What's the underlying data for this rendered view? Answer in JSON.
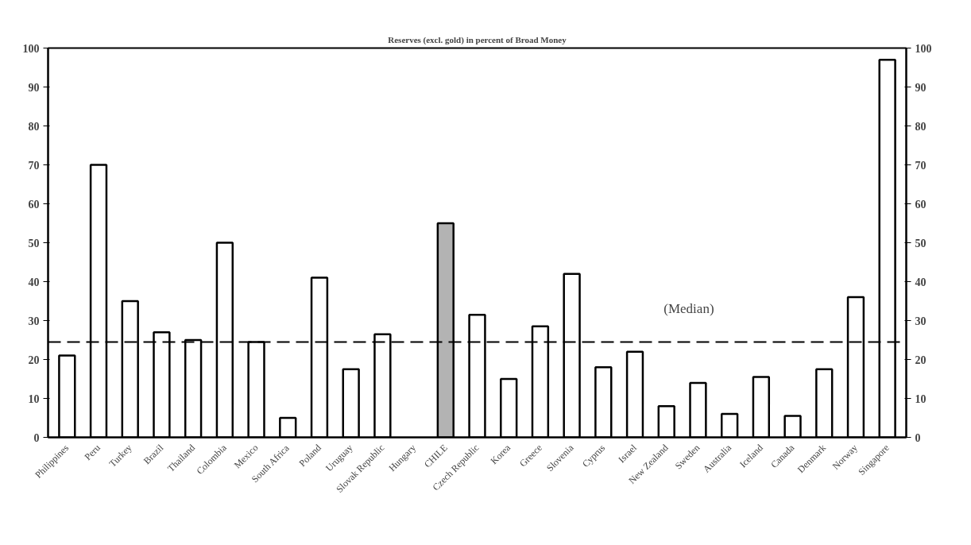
{
  "chart_data": {
    "type": "bar",
    "title": "Reserves (excl. gold) in percent of Broad Money",
    "categories": [
      "Philippines",
      "Peru",
      "Turkey",
      "Brazil",
      "Thailand",
      "Colombia",
      "Mexico",
      "South Africa",
      "Poland",
      "Uruguay",
      "Slovak Republic",
      "Hungary",
      "CHILE",
      "Czech Republic",
      "Korea",
      "Greece",
      "Slovenia",
      "Cyprus",
      "Israel",
      "New Zealand",
      "Sweden",
      "Australia",
      "Iceland",
      "Canada",
      "Denmark",
      "Norway",
      "Singapore"
    ],
    "values": [
      21,
      70,
      35,
      27,
      25,
      50,
      24.5,
      5,
      41,
      17.5,
      26.5,
      null,
      55,
      31.5,
      15,
      28.5,
      42,
      18,
      22,
      8,
      14,
      6,
      15.5,
      5.5,
      17.5,
      36,
      97
    ],
    "colors": [
      "#ffffff",
      "#ffffff",
      "#ffffff",
      "#ffffff",
      "#ffffff",
      "#ffffff",
      "#ffffff",
      "#ffffff",
      "#ffffff",
      "#ffffff",
      "#ffffff",
      "#ffffff",
      "#b3b3b3",
      "#ffffff",
      "#ffffff",
      "#ffffff",
      "#ffffff",
      "#ffffff",
      "#ffffff",
      "#ffffff",
      "#ffffff",
      "#ffffff",
      "#ffffff",
      "#ffffff",
      "#ffffff",
      "#ffffff",
      "#ffffff"
    ],
    "ylim": [
      0,
      100
    ],
    "yticks": [
      0,
      10,
      20,
      30,
      40,
      50,
      60,
      70,
      80,
      90,
      100
    ],
    "y2lim": [
      0,
      100
    ],
    "y2ticks": [
      0,
      10,
      20,
      30,
      40,
      50,
      60,
      70,
      80,
      90,
      100
    ],
    "ref_lines": [
      {
        "axis": "y",
        "value": 24.5,
        "label": "(Median)",
        "color": "#000000",
        "line_style": "dashed"
      }
    ],
    "grid": false
  }
}
